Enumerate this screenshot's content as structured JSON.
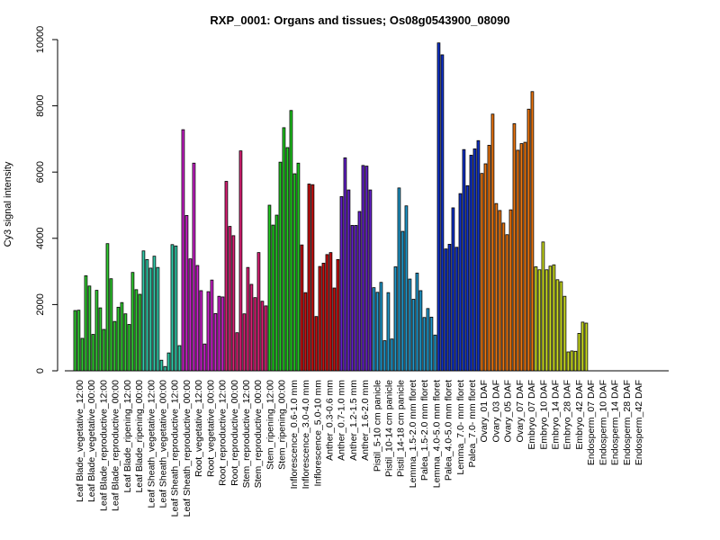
{
  "chart_data": {
    "type": "bar",
    "title": "RXP_0001: Organs and tissues; Os08g0543900_08090",
    "ylabel": "Cy3 signal intensity",
    "xlabel": "",
    "ylim": [
      0,
      10000
    ],
    "yticks": [
      0,
      2000,
      4000,
      6000,
      8000,
      10000
    ],
    "grid": false,
    "legend": "none",
    "groups": [
      {
        "color": "#33cc33",
        "values": [
          1820,
          1830,
          980,
          2870,
          2560,
          1100,
          2430,
          1900,
          1250,
          3840,
          2780,
          1490,
          1920,
          2060,
          1720,
          1400,
          2970,
          2450,
          2310
        ]
      },
      {
        "color": "#33ccaa",
        "values": [
          3620,
          3360,
          3100,
          3460,
          3120,
          320,
          130,
          540,
          3810,
          3770,
          760
        ]
      },
      {
        "color": "#cc22cc",
        "values": [
          7280,
          4690,
          3380,
          6270,
          3180,
          2420,
          810,
          2390,
          2740,
          1730,
          2250,
          2230
        ]
      },
      {
        "color": "#dd2277",
        "values": [
          5720,
          4360,
          4080,
          1150,
          6640,
          1720,
          3120,
          2610,
          2210,
          3570,
          2100,
          1960
        ]
      },
      {
        "color": "#22cc22",
        "values": [
          5000,
          4400,
          4700,
          6300,
          7340,
          6740,
          7860,
          5950,
          6270
        ]
      },
      {
        "color": "#cc1111",
        "values": [
          3800,
          2360,
          5640,
          5620,
          1640,
          3150,
          3250,
          3510,
          3570,
          2500,
          3360
        ]
      },
      {
        "color": "#6622cc",
        "values": [
          5260,
          6430,
          5460,
          4390,
          4390,
          4810,
          6200,
          6180,
          5460
        ]
      },
      {
        "color": "#2299cc",
        "values": [
          2510,
          2370,
          2670,
          910,
          2360,
          960,
          3140,
          5520,
          4210,
          4980,
          2770,
          2160,
          2950,
          2420,
          1610,
          1880,
          1620,
          1080
        ]
      },
      {
        "color": "#1133cc",
        "values": [
          9900,
          9540,
          3680,
          3820,
          4920,
          3730,
          5350,
          6680,
          5590,
          6510,
          6700,
          6950
        ]
      },
      {
        "color": "#ee7711",
        "values": [
          5960,
          6250,
          6810,
          7750,
          5050,
          4840,
          4460,
          4110,
          4860,
          7460,
          6660,
          6860,
          6900,
          7900,
          8430
        ]
      },
      {
        "color": "#ccdd22",
        "values": [
          3140,
          3050,
          3890,
          3050,
          3160,
          3200,
          2750,
          2690,
          2250,
          570,
          600,
          590,
          1130,
          1470,
          1440
        ]
      }
    ],
    "categories": [
      "Leaf Blade_vegetative_12:00",
      "Leaf Blade_vegetative_00:00",
      "Leaf Blade_reproductive_12:00",
      "Leaf Blade_reproductive_00:00",
      "Leaf Blade_ripening_12:00",
      "Leaf Blade_ripening_00:00",
      "Leaf Sheath_vegetative_12:00",
      "Leaf Sheath_vegetative_00:00",
      "Leaf Sheath_reproductive_12:00",
      "Leaf Sheath_reproductive_00:00",
      "Root_vegetative_12:00",
      "Root_vegetative_00:00",
      "Root_reproductive_12:00",
      "Root_reproductive_00:00",
      "Stem_reproductive_12:00",
      "Stem_reproductive_00:00",
      "Stem_ripening_12:00",
      "Stem_ripening_00:00",
      "Inflorescence_0.6-1.0 mm",
      "Inflorescence_3.0-4.0 mm",
      "Inflorescence_5.0-10 mm",
      "Anther_0.3-0.6 mm",
      "Anther_0.7-1.0 mm",
      "Anther_1.2-1.5 mm",
      "Anther_1.6-2.0 mm",
      "Pistil_5-10 cm panicle",
      "Pistil_10-14 cm panicle",
      "Pistil_14-18 cm panicle",
      "Lemma_1.5-2.0 mm floret",
      "Palea_1.5-2.0 mm floret",
      "Lemma_4.0-5.0 mm floret",
      "Palea_4.0-5.0 mm floret",
      "Lemma_7.0- mm floret",
      "Palea_7.0- mm floret",
      "Ovary_01 DAF",
      "Ovary_03 DAF",
      "Ovary_05 DAF",
      "Ovary_07 DAF",
      "Embryo_07 DAF",
      "Embryo_10 DAF",
      "Embryo_14 DAF",
      "Embryo_28 DAF",
      "Embryo_42 DAF",
      "Endosperm_07 DAF",
      "Endosperm_10 DAF",
      "Endosperm_14 DAF",
      "Endosperm_28 DAF",
      "Endosperm_42 DAF"
    ]
  }
}
